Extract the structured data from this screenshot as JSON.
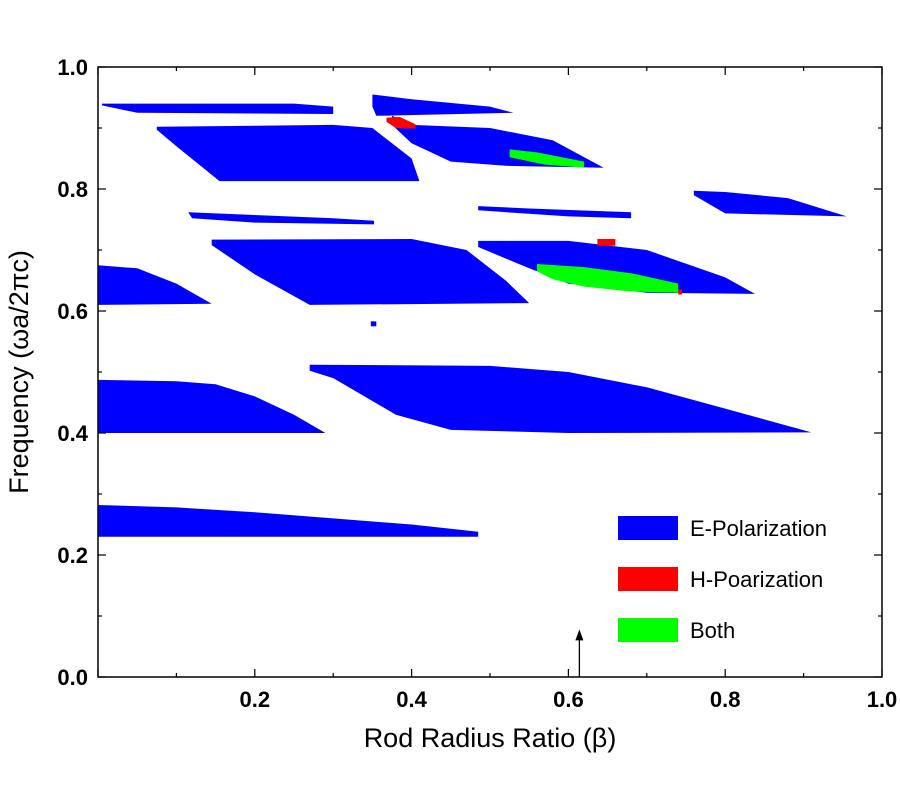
{
  "chart_data": {
    "type": "area",
    "title": "",
    "xlabel": "Rod Radius Ratio (β)",
    "ylabel": "Frequency (ωa/2πc)",
    "xlim": [
      0.0,
      1.0
    ],
    "ylim": [
      0.0,
      1.0
    ],
    "x_ticks": [
      0.2,
      0.4,
      0.6,
      0.8,
      1.0
    ],
    "x_tick_labels": [
      "0.2",
      "0.4",
      "0.6",
      "0.8",
      "1.0"
    ],
    "y_ticks": [
      0.0,
      0.2,
      0.4,
      0.6,
      0.8,
      1.0
    ],
    "y_tick_labels": [
      "0.0",
      "0.2",
      "0.4",
      "0.6",
      "0.8",
      "1.0"
    ],
    "grid": false,
    "legend_position": "bottom-right",
    "colors": {
      "E-Polarization": "#0000ff",
      "H-Poarization": "#ff0000",
      "Both": "#00ff00"
    },
    "series": [
      {
        "name": "E-Polarization",
        "color": "#0000ff",
        "regions": [
          [
            [
              0.0,
              0.282
            ],
            [
              0.1,
              0.278
            ],
            [
              0.2,
              0.27
            ],
            [
              0.3,
              0.26
            ],
            [
              0.4,
              0.25
            ],
            [
              0.485,
              0.238
            ],
            [
              0.485,
              0.23
            ],
            [
              0.0,
              0.23
            ]
          ],
          [
            [
              0.0,
              0.487
            ],
            [
              0.1,
              0.485
            ],
            [
              0.15,
              0.48
            ],
            [
              0.2,
              0.46
            ],
            [
              0.25,
              0.43
            ],
            [
              0.29,
              0.4
            ],
            [
              0.0,
              0.4
            ]
          ],
          [
            [
              0.27,
              0.512
            ],
            [
              0.5,
              0.51
            ],
            [
              0.6,
              0.5
            ],
            [
              0.7,
              0.475
            ],
            [
              0.8,
              0.44
            ],
            [
              0.91,
              0.401
            ],
            [
              0.6,
              0.4
            ],
            [
              0.45,
              0.405
            ],
            [
              0.38,
              0.43
            ],
            [
              0.3,
              0.49
            ],
            [
              0.27,
              0.502
            ]
          ],
          [
            [
              0.348,
              0.583
            ],
            [
              0.355,
              0.583
            ],
            [
              0.355,
              0.575
            ],
            [
              0.348,
              0.575
            ]
          ],
          [
            [
              0.0,
              0.675
            ],
            [
              0.05,
              0.67
            ],
            [
              0.1,
              0.645
            ],
            [
              0.145,
              0.612
            ],
            [
              0.0,
              0.61
            ]
          ],
          [
            [
              0.145,
              0.717
            ],
            [
              0.4,
              0.718
            ],
            [
              0.47,
              0.7
            ],
            [
              0.52,
              0.65
            ],
            [
              0.55,
              0.613
            ],
            [
              0.27,
              0.61
            ],
            [
              0.2,
              0.66
            ],
            [
              0.145,
              0.708
            ]
          ],
          [
            [
              0.115,
              0.762
            ],
            [
              0.3,
              0.752
            ],
            [
              0.352,
              0.748
            ],
            [
              0.352,
              0.742
            ],
            [
              0.2,
              0.745
            ],
            [
              0.12,
              0.752
            ]
          ],
          [
            [
              0.485,
              0.715
            ],
            [
              0.6,
              0.715
            ],
            [
              0.7,
              0.7
            ],
            [
              0.8,
              0.655
            ],
            [
              0.838,
              0.628
            ],
            [
              0.7,
              0.63
            ],
            [
              0.6,
              0.645
            ],
            [
              0.55,
              0.67
            ],
            [
              0.485,
              0.705
            ]
          ],
          [
            [
              0.485,
              0.772
            ],
            [
              0.55,
              0.768
            ],
            [
              0.68,
              0.762
            ],
            [
              0.68,
              0.752
            ],
            [
              0.6,
              0.755
            ],
            [
              0.485,
              0.765
            ]
          ],
          [
            [
              0.76,
              0.797
            ],
            [
              0.8,
              0.795
            ],
            [
              0.88,
              0.785
            ],
            [
              0.955,
              0.755
            ],
            [
              0.8,
              0.76
            ],
            [
              0.76,
              0.79
            ]
          ],
          [
            [
              0.005,
              0.94
            ],
            [
              0.25,
              0.94
            ],
            [
              0.3,
              0.935
            ],
            [
              0.3,
              0.923
            ],
            [
              0.05,
              0.925
            ],
            [
              0.005,
              0.937
            ]
          ],
          [
            [
              0.075,
              0.902
            ],
            [
              0.3,
              0.905
            ],
            [
              0.35,
              0.9
            ],
            [
              0.4,
              0.85
            ],
            [
              0.41,
              0.813
            ],
            [
              0.155,
              0.813
            ],
            [
              0.1,
              0.87
            ],
            [
              0.075,
              0.897
            ]
          ],
          [
            [
              0.35,
              0.955
            ],
            [
              0.4,
              0.947
            ],
            [
              0.5,
              0.935
            ],
            [
              0.53,
              0.925
            ],
            [
              0.355,
              0.92
            ],
            [
              0.35,
              0.935
            ]
          ],
          [
            [
              0.375,
              0.92
            ],
            [
              0.4,
              0.905
            ],
            [
              0.5,
              0.9
            ],
            [
              0.58,
              0.88
            ],
            [
              0.645,
              0.835
            ],
            [
              0.52,
              0.838
            ],
            [
              0.45,
              0.845
            ],
            [
              0.4,
              0.875
            ],
            [
              0.375,
              0.905
            ]
          ]
        ]
      },
      {
        "name": "H-Poarization",
        "color": "#ff0000",
        "regions": [
          [
            [
              0.368,
              0.917
            ],
            [
              0.385,
              0.918
            ],
            [
              0.405,
              0.906
            ],
            [
              0.405,
              0.899
            ],
            [
              0.38,
              0.9
            ],
            [
              0.368,
              0.91
            ]
          ],
          [
            [
              0.637,
              0.718
            ],
            [
              0.66,
              0.718
            ],
            [
              0.66,
              0.707
            ],
            [
              0.637,
              0.707
            ]
          ],
          [
            [
              0.74,
              0.635
            ],
            [
              0.745,
              0.635
            ],
            [
              0.745,
              0.627
            ],
            [
              0.74,
              0.627
            ]
          ]
        ]
      },
      {
        "name": "Both",
        "color": "#00ff00",
        "regions": [
          [
            [
              0.525,
              0.865
            ],
            [
              0.56,
              0.86
            ],
            [
              0.62,
              0.845
            ],
            [
              0.62,
              0.835
            ],
            [
              0.57,
              0.84
            ],
            [
              0.525,
              0.852
            ]
          ],
          [
            [
              0.56,
              0.677
            ],
            [
              0.62,
              0.672
            ],
            [
              0.68,
              0.662
            ],
            [
              0.74,
              0.645
            ],
            [
              0.74,
              0.63
            ],
            [
              0.68,
              0.632
            ],
            [
              0.62,
              0.64
            ],
            [
              0.58,
              0.652
            ],
            [
              0.56,
              0.665
            ]
          ]
        ]
      }
    ],
    "annotations": [
      {
        "type": "arrow",
        "x": 0.614,
        "y_from": 0.0,
        "y_to": 0.078
      }
    ]
  }
}
